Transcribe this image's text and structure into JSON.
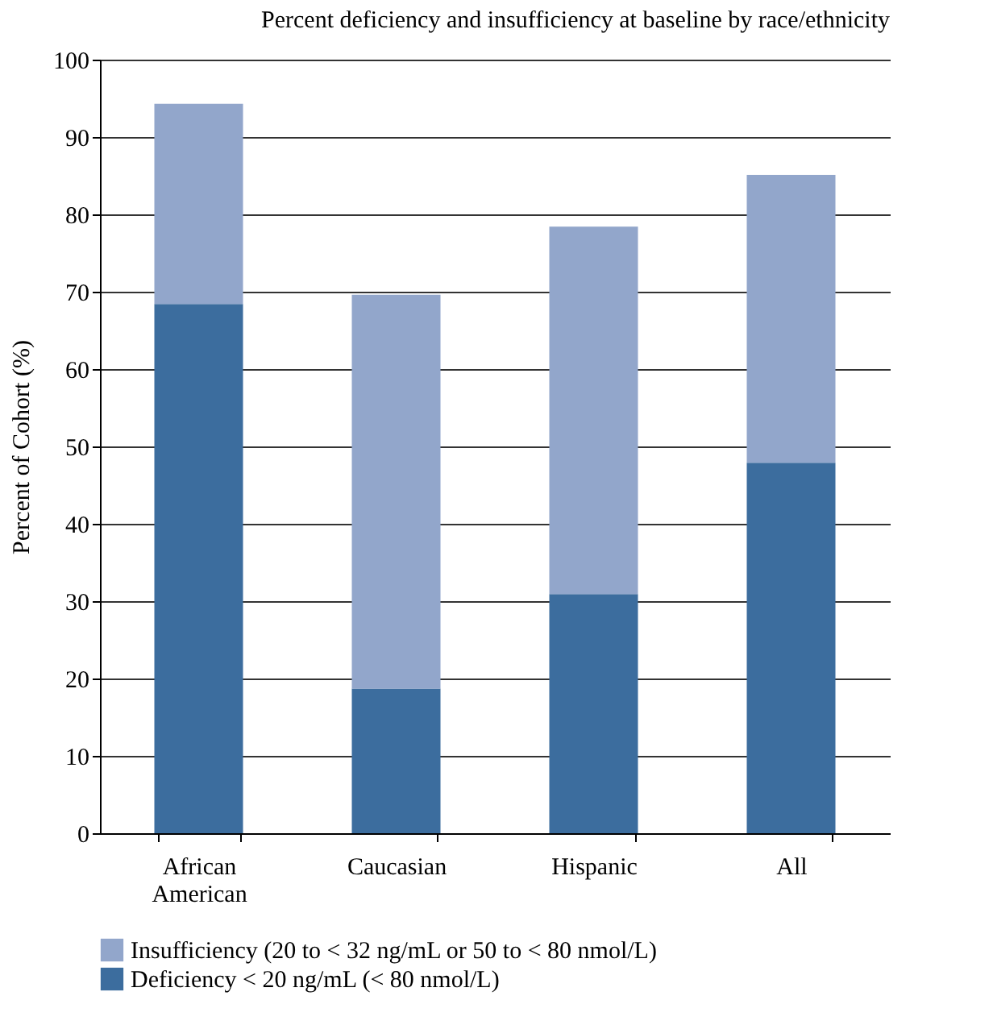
{
  "chart_data": {
    "type": "bar",
    "title": "Percent deficiency and insufficiency at baseline by race/ethnicity",
    "ylabel": "Percent of Cohort (%)",
    "categories": [
      "African American",
      "Caucasian",
      "Hispanic",
      "All"
    ],
    "stacked": true,
    "series": [
      {
        "name": "Deficiency < 20 ng/mL (< 80 nmol/L)",
        "color": "#3c6d9e",
        "values": [
          68.4,
          18.7,
          30.9,
          47.9
        ]
      },
      {
        "name": "Insufficiency (20 to < 32 ng/mL or 50 to < 80 nmol/L)",
        "color": "#92a6cb",
        "values": [
          25.9,
          50.9,
          47.5,
          37.2
        ]
      }
    ],
    "ylim": [
      0,
      100
    ],
    "yticks": [
      0,
      10,
      20,
      30,
      40,
      50,
      60,
      70,
      80,
      90,
      100
    ],
    "grid": "y",
    "legend": "bottom"
  }
}
